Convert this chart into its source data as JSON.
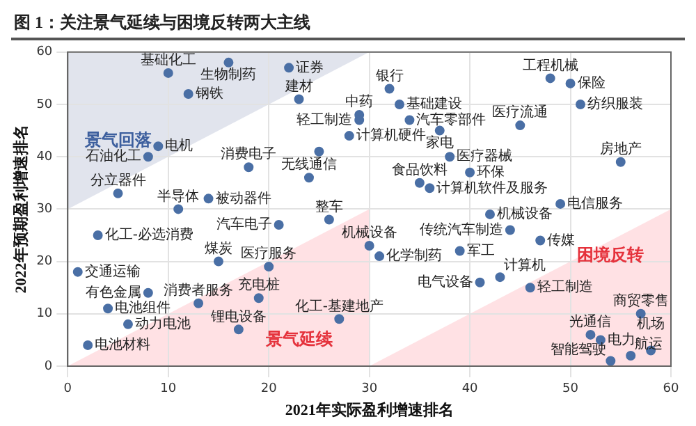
{
  "chart_data": {
    "type": "scatter",
    "title": "图 1：关注景气延续与困境反转两大主线",
    "xlabel": "2021年实际盈利增速排名",
    "ylabel": "2022年预期盈利增速排名",
    "xlim": [
      0,
      60
    ],
    "ylim": [
      0,
      60
    ],
    "xticks": [
      0,
      10,
      20,
      30,
      40,
      50,
      60
    ],
    "yticks": [
      0,
      10,
      20,
      30,
      40,
      50,
      60
    ],
    "grid": true,
    "legend": false,
    "marker": "circle",
    "series": [
      {
        "color": "#4a6fa5",
        "x": [
          10,
          16,
          12,
          22,
          23,
          9,
          8,
          18,
          28,
          25,
          24,
          29,
          29,
          32,
          33,
          34,
          37,
          48,
          50,
          51,
          45,
          55,
          38,
          40,
          35,
          36,
          49,
          42,
          44,
          47,
          30,
          31,
          39,
          43,
          41,
          46,
          57,
          52,
          53,
          54,
          56,
          58,
          5,
          11,
          14,
          21,
          26,
          3,
          1,
          15,
          20,
          8,
          4,
          6,
          19,
          13,
          17,
          27,
          2
        ],
        "values": [
          56,
          58,
          52,
          57,
          51,
          42,
          40,
          38,
          44,
          41,
          36,
          48,
          47,
          53,
          50,
          47,
          45,
          55,
          54,
          50,
          46,
          39,
          40,
          37,
          35,
          34,
          31,
          29,
          26,
          24,
          23,
          21,
          22,
          17,
          16,
          15,
          10,
          6,
          5,
          1,
          2,
          3,
          33,
          30,
          32,
          27,
          28,
          25,
          18,
          20,
          19,
          14,
          11,
          8,
          13,
          12,
          7,
          9,
          4
        ]
      }
    ],
    "annotations": [
      "景气回落",
      "景气延续",
      "困境反转",
      {
        "text": "基础化工",
        "x": 10,
        "y": 56
      },
      {
        "text": "生物制药",
        "x": 16,
        "y": 58
      },
      {
        "text": "钢铁",
        "x": 12,
        "y": 52
      },
      {
        "text": "证券",
        "x": 22,
        "y": 57
      },
      {
        "text": "建材",
        "x": 23,
        "y": 51
      },
      {
        "text": "电机",
        "x": 9,
        "y": 42
      },
      {
        "text": "石油化工",
        "x": 8,
        "y": 40
      },
      {
        "text": "消费电子",
        "x": 18,
        "y": 38
      },
      {
        "text": "计算机硬件",
        "x": 28,
        "y": 44
      },
      {
        "text": "无线通信",
        "x": 24,
        "y": 36
      },
      {
        "text": "中药",
        "x": 29,
        "y": 48
      },
      {
        "text": "轻工制造",
        "x": 29,
        "y": 47
      },
      {
        "text": "银行",
        "x": 32,
        "y": 53
      },
      {
        "text": "基础建设",
        "x": 33,
        "y": 50
      },
      {
        "text": "汽车零部件",
        "x": 34,
        "y": 47
      },
      {
        "text": "家电",
        "x": 37,
        "y": 45
      },
      {
        "text": "工程机械",
        "x": 48,
        "y": 55
      },
      {
        "text": "保险",
        "x": 50,
        "y": 54
      },
      {
        "text": "纺织服装",
        "x": 51,
        "y": 50
      },
      {
        "text": "医疗流通",
        "x": 45,
        "y": 46
      },
      {
        "text": "房地产",
        "x": 55,
        "y": 39
      },
      {
        "text": "医疗器械",
        "x": 38,
        "y": 40
      },
      {
        "text": "环保",
        "x": 40,
        "y": 37
      },
      {
        "text": "食品饮料",
        "x": 35,
        "y": 35
      },
      {
        "text": "计算机软件及服务",
        "x": 36,
        "y": 34
      },
      {
        "text": "电信服务",
        "x": 49,
        "y": 31
      },
      {
        "text": "机械设备",
        "x": 42,
        "y": 29
      },
      {
        "text": "传统汽车制造",
        "x": 44,
        "y": 26
      },
      {
        "text": "传媒",
        "x": 47,
        "y": 24
      },
      {
        "text": "机械设备",
        "x": 30,
        "y": 23
      },
      {
        "text": "化学制药",
        "x": 31,
        "y": 21
      },
      {
        "text": "军工",
        "x": 39,
        "y": 22
      },
      {
        "text": "计算机",
        "x": 43,
        "y": 17
      },
      {
        "text": "电气设备",
        "x": 41,
        "y": 16
      },
      {
        "text": "轻工制造",
        "x": 46,
        "y": 15
      },
      {
        "text": "商贸零售",
        "x": 57,
        "y": 10
      },
      {
        "text": "光通信",
        "x": 52,
        "y": 6
      },
      {
        "text": "电力",
        "x": 53,
        "y": 5
      },
      {
        "text": "智能驾驶",
        "x": 54,
        "y": 1
      },
      {
        "text": "航运",
        "x": 56,
        "y": 2
      },
      {
        "text": "机场",
        "x": 58,
        "y": 3
      },
      {
        "text": "分立器件",
        "x": 5,
        "y": 33
      },
      {
        "text": "半导体",
        "x": 11,
        "y": 30
      },
      {
        "text": "被动器件",
        "x": 14,
        "y": 32
      },
      {
        "text": "汽车电子",
        "x": 21,
        "y": 27
      },
      {
        "text": "整车",
        "x": 26,
        "y": 28
      },
      {
        "text": "化工-必选消费",
        "x": 3,
        "y": 25
      },
      {
        "text": "交通运输",
        "x": 1,
        "y": 18
      },
      {
        "text": "煤炭",
        "x": 15,
        "y": 20
      },
      {
        "text": "医疗服务",
        "x": 20,
        "y": 19
      },
      {
        "text": "有色金属",
        "x": 8,
        "y": 14
      },
      {
        "text": "电池组件",
        "x": 4,
        "y": 11
      },
      {
        "text": "动力电池",
        "x": 6,
        "y": 8
      },
      {
        "text": "充电桩",
        "x": 19,
        "y": 13
      },
      {
        "text": "消费者服务",
        "x": 13,
        "y": 12
      },
      {
        "text": "锂电设备",
        "x": 17,
        "y": 7
      },
      {
        "text": "化工-基建地产",
        "x": 27,
        "y": 9
      },
      {
        "text": "电池材料",
        "x": 2,
        "y": 4
      }
    ]
  }
}
